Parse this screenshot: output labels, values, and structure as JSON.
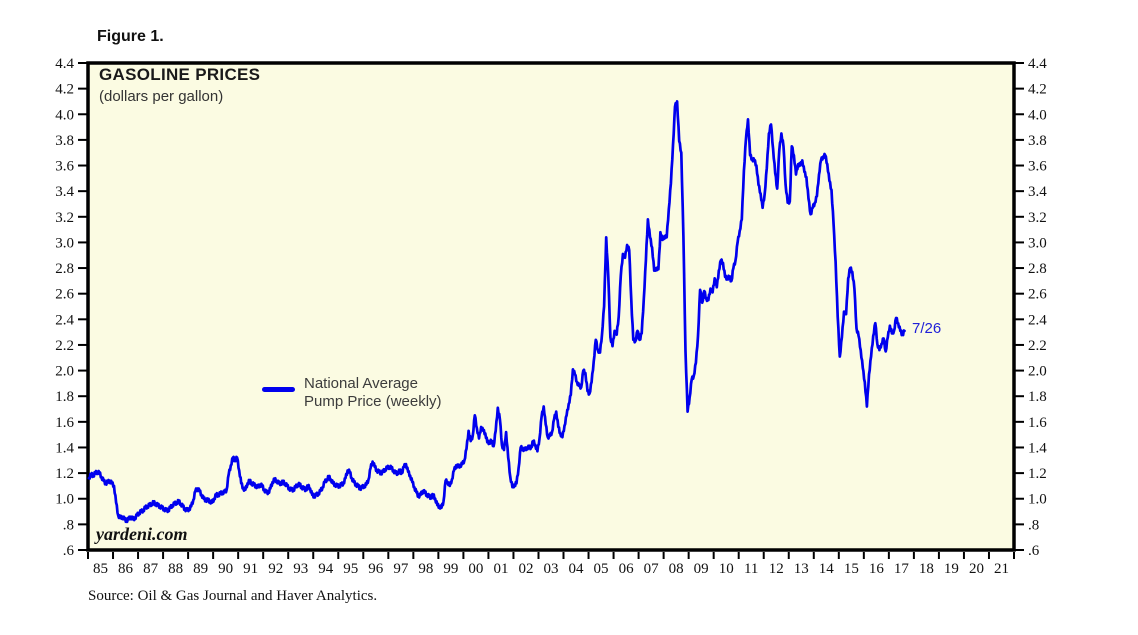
{
  "figure_label": "Figure 1.",
  "chart": {
    "title": "GASOLINE PRICES",
    "subtitle": "(dollars per gallon)",
    "watermark": "yardeni.com",
    "legend": {
      "line1": "National Average",
      "line2": "Pump Price (weekly)"
    },
    "colors": {
      "line": "#0000EE",
      "plot_bg": "#FBFBE2",
      "frame": "#000000",
      "tick_text": "#111111",
      "annotation_text": "#2020D8"
    }
  },
  "source_note": "Source: Oil & Gas Journal and Haver Analytics.",
  "chart_data": {
    "type": "line",
    "title": "GASOLINE PRICES",
    "subtitle": "(dollars per gallon)",
    "xlabel": "",
    "ylabel": "dollars per gallon",
    "x_range": [
      1985,
      2022
    ],
    "ylim": [
      0.6,
      4.4
    ],
    "grid": false,
    "legend_position": "inside-center-left",
    "y_axis_sides": "both",
    "y_tick_labels": [
      "4.4",
      "4.2",
      "4.0",
      "3.8",
      "3.6",
      "3.4",
      "3.2",
      "3.0",
      "2.8",
      "2.6",
      "2.4",
      "2.2",
      "2.0",
      "1.8",
      "1.6",
      "1.4",
      "1.2",
      "1.0",
      ".8",
      ".6"
    ],
    "x_tick_labels": [
      "85",
      "86",
      "87",
      "88",
      "89",
      "90",
      "91",
      "92",
      "93",
      "94",
      "95",
      "96",
      "97",
      "98",
      "99",
      "00",
      "01",
      "02",
      "03",
      "04",
      "05",
      "06",
      "07",
      "08",
      "09",
      "10",
      "11",
      "12",
      "13",
      "14",
      "15",
      "16",
      "17",
      "18",
      "19",
      "20",
      "21"
    ],
    "annotation": {
      "text": "7/26",
      "x": 2017.62,
      "y": 2.31
    },
    "series": [
      {
        "name": "National Average Pump Price (weekly)",
        "x_start": 1985.04,
        "x_step_years": 0.083333,
        "values": [
          1.16,
          1.19,
          1.18,
          1.2,
          1.21,
          1.2,
          1.17,
          1.14,
          1.12,
          1.13,
          1.14,
          1.12,
          1.1,
          0.97,
          0.87,
          0.85,
          0.86,
          0.84,
          0.83,
          0.84,
          0.86,
          0.84,
          0.85,
          0.87,
          0.89,
          0.9,
          0.91,
          0.93,
          0.94,
          0.95,
          0.96,
          0.97,
          0.96,
          0.95,
          0.94,
          0.93,
          0.92,
          0.91,
          0.91,
          0.93,
          0.95,
          0.96,
          0.97,
          0.98,
          0.96,
          0.94,
          0.92,
          0.91,
          0.92,
          0.94,
          0.99,
          1.06,
          1.08,
          1.06,
          1.03,
          1.0,
          0.99,
          0.99,
          0.98,
          0.97,
          1.0,
          1.03,
          1.03,
          1.04,
          1.05,
          1.05,
          1.07,
          1.19,
          1.26,
          1.32,
          1.3,
          1.32,
          1.22,
          1.12,
          1.08,
          1.07,
          1.12,
          1.14,
          1.12,
          1.11,
          1.1,
          1.09,
          1.11,
          1.1,
          1.07,
          1.05,
          1.05,
          1.08,
          1.13,
          1.15,
          1.14,
          1.12,
          1.12,
          1.13,
          1.12,
          1.1,
          1.08,
          1.07,
          1.07,
          1.09,
          1.11,
          1.11,
          1.09,
          1.08,
          1.07,
          1.1,
          1.08,
          1.03,
          1.02,
          1.03,
          1.04,
          1.06,
          1.09,
          1.13,
          1.15,
          1.17,
          1.15,
          1.12,
          1.11,
          1.1,
          1.1,
          1.11,
          1.12,
          1.16,
          1.22,
          1.21,
          1.16,
          1.13,
          1.11,
          1.1,
          1.08,
          1.09,
          1.1,
          1.11,
          1.15,
          1.24,
          1.29,
          1.25,
          1.22,
          1.21,
          1.2,
          1.21,
          1.23,
          1.24,
          1.25,
          1.24,
          1.22,
          1.2,
          1.2,
          1.22,
          1.2,
          1.25,
          1.27,
          1.21,
          1.18,
          1.13,
          1.09,
          1.05,
          1.02,
          1.03,
          1.06,
          1.05,
          1.03,
          1.02,
          1.01,
          1.03,
          1.0,
          0.95,
          0.94,
          0.93,
          0.98,
          1.14,
          1.13,
          1.1,
          1.15,
          1.22,
          1.26,
          1.25,
          1.26,
          1.27,
          1.3,
          1.39,
          1.53,
          1.45,
          1.49,
          1.65,
          1.55,
          1.47,
          1.56,
          1.53,
          1.51,
          1.44,
          1.44,
          1.45,
          1.41,
          1.53,
          1.71,
          1.62,
          1.42,
          1.38,
          1.52,
          1.32,
          1.17,
          1.09,
          1.11,
          1.12,
          1.24,
          1.4,
          1.39,
          1.38,
          1.4,
          1.4,
          1.4,
          1.45,
          1.42,
          1.37,
          1.47,
          1.64,
          1.72,
          1.58,
          1.48,
          1.49,
          1.52,
          1.62,
          1.68,
          1.56,
          1.51,
          1.48,
          1.57,
          1.65,
          1.74,
          1.81,
          2.01,
          1.97,
          1.91,
          1.88,
          1.87,
          2.0,
          1.98,
          1.84,
          1.82,
          1.91,
          2.07,
          2.24,
          2.16,
          2.14,
          2.29,
          2.5,
          3.04,
          2.73,
          2.26,
          2.19,
          2.31,
          2.28,
          2.42,
          2.74,
          2.91,
          2.88,
          2.98,
          2.94,
          2.55,
          2.24,
          2.23,
          2.31,
          2.24,
          2.29,
          2.56,
          2.86,
          3.18,
          3.04,
          2.96,
          2.78,
          2.8,
          2.79,
          3.08,
          3.02,
          3.05,
          3.04,
          3.26,
          3.46,
          3.76,
          4.06,
          4.1,
          3.79,
          3.7,
          3.05,
          2.15,
          1.68,
          1.79,
          1.93,
          1.96,
          2.06,
          2.27,
          2.63,
          2.53,
          2.62,
          2.56,
          2.55,
          2.64,
          2.61,
          2.72,
          2.65,
          2.78,
          2.86,
          2.84,
          2.73,
          2.72,
          2.73,
          2.7,
          2.8,
          2.86,
          3.0,
          3.09,
          3.18,
          3.56,
          3.81,
          3.96,
          3.68,
          3.65,
          3.64,
          3.6,
          3.45,
          3.38,
          3.27,
          3.38,
          3.58,
          3.85,
          3.92,
          3.73,
          3.54,
          3.42,
          3.72,
          3.85,
          3.75,
          3.45,
          3.31,
          3.32,
          3.75,
          3.68,
          3.53,
          3.61,
          3.6,
          3.64,
          3.55,
          3.51,
          3.34,
          3.22,
          3.27,
          3.31,
          3.36,
          3.53,
          3.64,
          3.67,
          3.68,
          3.61,
          3.48,
          3.41,
          3.14,
          2.85,
          2.42,
          2.11,
          2.26,
          2.46,
          2.44,
          2.72,
          2.8,
          2.77,
          2.64,
          2.33,
          2.27,
          2.16,
          2.02,
          1.91,
          1.72,
          1.97,
          2.11,
          2.27,
          2.37,
          2.21,
          2.16,
          2.21,
          2.25,
          2.15,
          2.26,
          2.35,
          2.29,
          2.31,
          2.41,
          2.37,
          2.31,
          2.28,
          2.31
        ]
      }
    ]
  }
}
